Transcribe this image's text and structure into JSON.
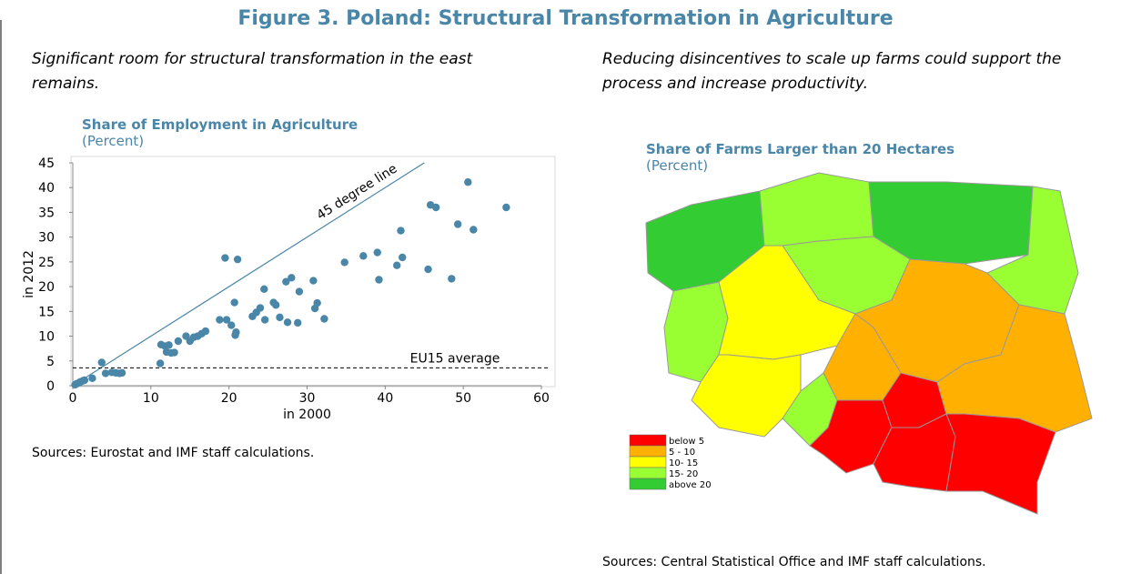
{
  "title": "Figure 3. Poland: Structural Transformation in Agriculture",
  "chart_data": [
    {
      "type": "scatter",
      "heading": "Significant room for structural transformation in the east remains.",
      "title": "Share of Employment in Agriculture",
      "subtitle": "(Percent)",
      "xlabel": "in 2000",
      "ylabel": "in 2012",
      "x": [
        0.3,
        0.5,
        0.8,
        1,
        1.3,
        1.5,
        2.5,
        3.7,
        4.2,
        5,
        5.5,
        6,
        6.3,
        11.2,
        11.3,
        11.8,
        12,
        12.3,
        12.6,
        13,
        13.5,
        14.5,
        15,
        15.5,
        16,
        16.5,
        17,
        18.8,
        19.5,
        19.7,
        20.3,
        20.7,
        20.8,
        20.9,
        21.1,
        23,
        23.5,
        24,
        24.5,
        24.6,
        25.7,
        26,
        26.5,
        27.3,
        27.5,
        28,
        28.8,
        29,
        30.8,
        31,
        31.3,
        32.2,
        34.8,
        37.2,
        39,
        39.2,
        41.5,
        42,
        42.2,
        45.5,
        45.8,
        46.5,
        48.5,
        49.3,
        50.6,
        51.3,
        55.5
      ],
      "values": [
        0.2,
        0.4,
        0.6,
        0.8,
        1,
        1.1,
        1.5,
        4.7,
        2.5,
        2.7,
        2.6,
        2.5,
        2.6,
        4.5,
        8.3,
        8,
        6.8,
        8.2,
        6.6,
        6.7,
        9,
        10,
        9,
        9.8,
        10,
        10.5,
        11,
        13.3,
        25.8,
        13.3,
        12.2,
        16.8,
        10.2,
        10.8,
        25.5,
        14,
        14.8,
        15.7,
        19.5,
        13.3,
        16.8,
        16.3,
        13.8,
        21,
        12.8,
        21.8,
        12.7,
        19,
        21.2,
        15.6,
        16.7,
        13.5,
        24.9,
        26.2,
        26.9,
        21.4,
        24.3,
        31.3,
        25.9,
        23.5,
        36.5,
        36,
        21.6,
        32.6,
        41.1,
        31.5,
        36
      ],
      "color": "#4a86a8",
      "xlim": [
        0,
        60
      ],
      "xticks": [
        0,
        10,
        20,
        30,
        40,
        50,
        60
      ],
      "ylim": [
        0,
        45
      ],
      "yticks": [
        0,
        5,
        10,
        15,
        20,
        25,
        30,
        35,
        40,
        45
      ],
      "diagonal_label": "45 degree line",
      "hline": {
        "value": 3.6,
        "label": "EU15 average"
      },
      "source": "Sources: Eurostat and IMF staff calculations."
    },
    {
      "type": "map",
      "heading": "Reducing disincentives to scale up farms could support the process and increase productivity.",
      "title": "Share of Farms Larger than 20 Hectares",
      "subtitle": "(Percent)",
      "legend": [
        {
          "label": "below 5",
          "color": "#ff0000"
        },
        {
          "label": "5 - 10",
          "color": "#ffb000"
        },
        {
          "label": "10- 15",
          "color": "#ffff00"
        },
        {
          "label": "15- 20",
          "color": "#99ff33"
        },
        {
          "label": "above 20",
          "color": "#33cc33"
        }
      ],
      "regions": [
        4,
        3,
        4,
        3,
        3,
        3,
        2,
        1,
        1,
        2,
        3,
        0,
        0,
        1,
        0,
        0
      ],
      "source": "Sources: Central Statistical Office and IMF staff calculations."
    }
  ]
}
